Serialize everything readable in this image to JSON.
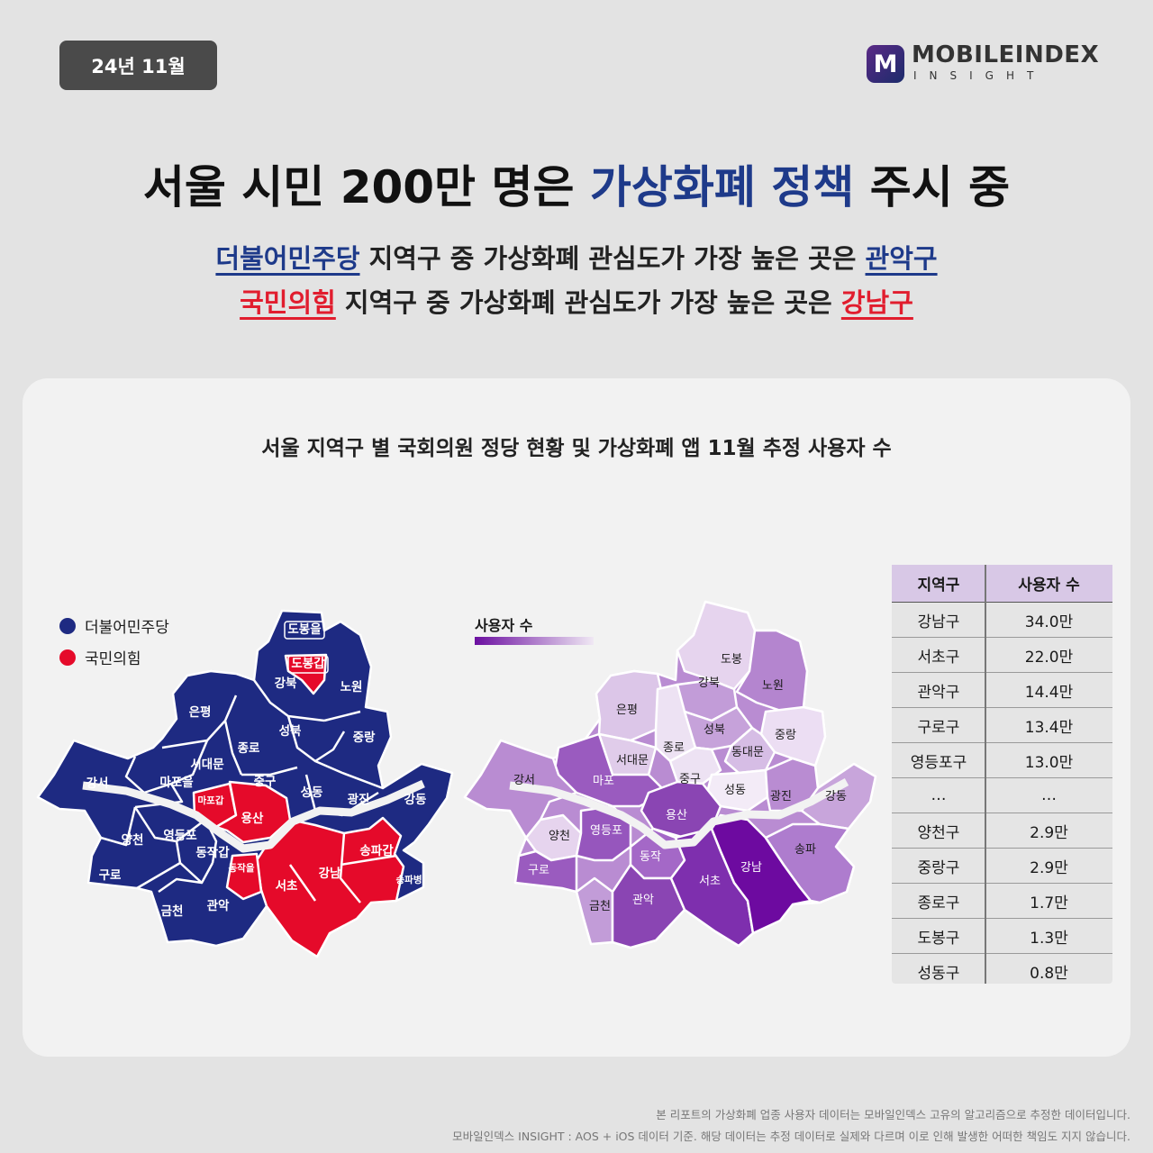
{
  "date": "24년 11월",
  "logo": {
    "mark": "M",
    "name": "MOBILEINDEX",
    "sub": "INSIGHT",
    "icon": "mobileindex-logo-icon"
  },
  "headline": {
    "before": "서울 시민 200만 명은 ",
    "highlight": "가상화폐 정책",
    "after": " 주시 중"
  },
  "subline1": {
    "party": "더불어민주당",
    "middle": " 지역구 중 가상화폐 관심도가 가장 높은 곳은 ",
    "district": "관악구"
  },
  "subline2": {
    "party": "국민의힘",
    "middle": " 지역구 중 가상화폐 관심도가 가장 높은 곳은 ",
    "district": "강남구"
  },
  "panel_title": "서울 지역구 별 국회의원 정당 현황 및 가상화폐 앱 11월 추정 사용자 수",
  "legend": {
    "dem": "더불어민주당",
    "ppp": "국민의힘",
    "dem_color": "#1e2a82",
    "ppp_color": "#e50a2a"
  },
  "scale_label": "사용자 수",
  "left_map": {
    "labels": [
      {
        "name": "도봉을",
        "party": "dem"
      },
      {
        "name": "도봉갑",
        "party": "ppp"
      },
      {
        "name": "강북",
        "party": "dem"
      },
      {
        "name": "노원",
        "party": "dem"
      },
      {
        "name": "은평",
        "party": "dem"
      },
      {
        "name": "성북",
        "party": "dem"
      },
      {
        "name": "종로",
        "party": "dem"
      },
      {
        "name": "중랑",
        "party": "dem"
      },
      {
        "name": "서대문",
        "party": "dem"
      },
      {
        "name": "중구",
        "party": "dem"
      },
      {
        "name": "강서",
        "party": "dem"
      },
      {
        "name": "마포을",
        "party": "dem"
      },
      {
        "name": "성동",
        "party": "dem"
      },
      {
        "name": "광진",
        "party": "dem"
      },
      {
        "name": "강동",
        "party": "dem"
      },
      {
        "name": "마포갑",
        "party": "ppp"
      },
      {
        "name": "용산",
        "party": "ppp"
      },
      {
        "name": "양천",
        "party": "dem"
      },
      {
        "name": "영등포",
        "party": "dem"
      },
      {
        "name": "송파갑",
        "party": "ppp"
      },
      {
        "name": "동작갑",
        "party": "dem"
      },
      {
        "name": "동작을",
        "party": "ppp"
      },
      {
        "name": "구로",
        "party": "dem"
      },
      {
        "name": "강남",
        "party": "ppp"
      },
      {
        "name": "송파병",
        "party": "dem"
      },
      {
        "name": "서초",
        "party": "ppp"
      },
      {
        "name": "관악",
        "party": "dem"
      },
      {
        "name": "금천",
        "party": "dem"
      }
    ]
  },
  "right_map": {
    "labels": [
      "도봉",
      "강북",
      "노원",
      "은평",
      "성북",
      "중랑",
      "종로",
      "동대문",
      "서대문",
      "강서",
      "마포",
      "중구",
      "성동",
      "광진",
      "강동",
      "용산",
      "양천",
      "영등포",
      "송파",
      "동작",
      "강남",
      "구로",
      "서초",
      "관악",
      "금천"
    ]
  },
  "table": {
    "headers": [
      "지역구",
      "사용자 수"
    ],
    "rows": [
      [
        "강남구",
        "34.0만"
      ],
      [
        "서초구",
        "22.0만"
      ],
      [
        "관악구",
        "14.4만"
      ],
      [
        "구로구",
        "13.4만"
      ],
      [
        "영등포구",
        "13.0만"
      ],
      [
        "…",
        "…"
      ],
      [
        "양천구",
        "2.9만"
      ],
      [
        "중랑구",
        "2.9만"
      ],
      [
        "종로구",
        "1.7만"
      ],
      [
        "도봉구",
        "1.3만"
      ],
      [
        "성동구",
        "0.8만"
      ]
    ]
  },
  "footnotes": [
    "본 리포트의 가상화폐 업종 사용자 데이터는 모바일인덱스 고유의 알고리즘으로 추정한 데이터입니다.",
    "모바일인덱스 INSIGHT : AOS + iOS 데이터 기준. 해당 데이터는 추정 데이터로 실제와 다르며 이로 인해 발생한 어떠한 책임도 지지 않습니다."
  ]
}
